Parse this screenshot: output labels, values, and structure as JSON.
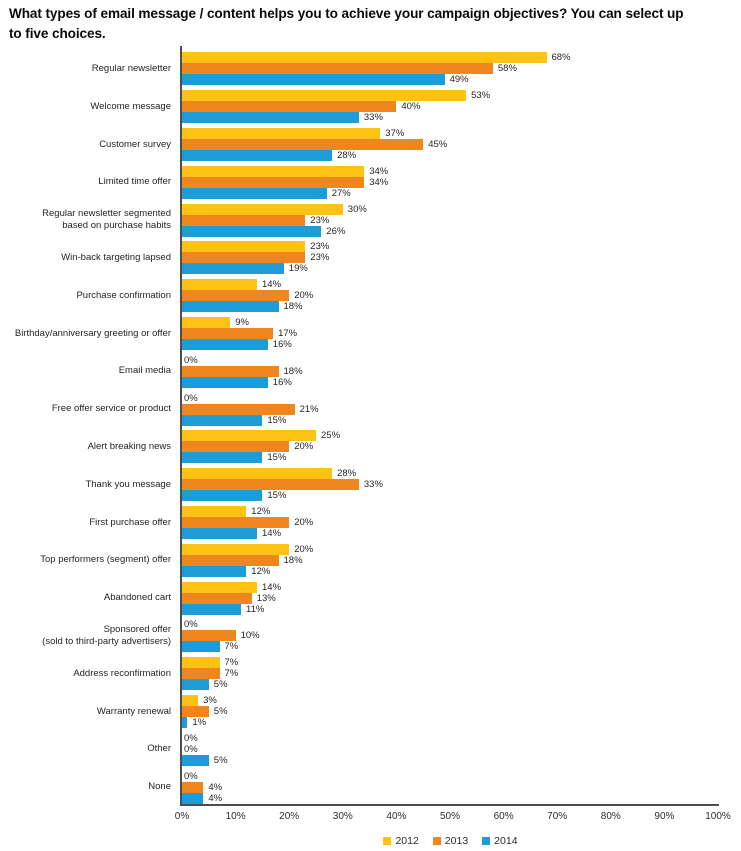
{
  "title": "What types of email message / content helps you to achieve your campaign objectives? You can select up\nto five choices.",
  "chart_data": {
    "type": "bar",
    "orientation": "horizontal",
    "title": "What types of email message / content helps you to achieve your campaign objectives? You can select up to five choices.",
    "categories": [
      "Regular newsletter",
      "Welcome message",
      "Customer survey",
      "Limited time offer",
      "Regular newsletter segmented\nbased on purchase habits",
      "Win-back targeting lapsed",
      "Purchase confirmation",
      "Birthday/anniversary greeting or offer",
      "Email media",
      "Free offer service or product",
      "Alert breaking news",
      "Thank you message",
      "First purchase offer",
      "Top performers (segment) offer",
      "Abandoned cart",
      "Sponsored offer\n(sold to third-party advertisers)",
      "Address reconfirmation",
      "Warranty renewal",
      "Other",
      "None"
    ],
    "series": [
      {
        "name": "2012",
        "color": "#FDC214",
        "values": [
          68,
          53,
          37,
          34,
          30,
          23,
          14,
          9,
          0,
          0,
          25,
          28,
          12,
          20,
          14,
          0,
          7,
          3,
          0,
          0
        ]
      },
      {
        "name": "2013",
        "color": "#F0861E",
        "values": [
          58,
          40,
          45,
          34,
          23,
          23,
          20,
          17,
          18,
          21,
          20,
          33,
          20,
          18,
          13,
          10,
          7,
          5,
          0,
          4
        ]
      },
      {
        "name": "2014",
        "color": "#1E9CD7",
        "values": [
          49,
          33,
          28,
          27,
          26,
          19,
          18,
          16,
          16,
          15,
          15,
          15,
          14,
          12,
          11,
          7,
          5,
          1,
          5,
          4
        ]
      }
    ],
    "value_suffix": "%",
    "x_ticks": [
      "0%",
      "10%",
      "20%",
      "30%",
      "40%",
      "50%",
      "60%",
      "70%",
      "80%",
      "90%",
      "100%"
    ],
    "xlim": [
      0,
      100
    ],
    "grid": false,
    "legend_position": "bottom",
    "legend_entries": [
      "2012",
      "2013",
      "2014"
    ],
    "axis_color": "#4D4D4F",
    "text_color": "#231F20",
    "background_color": "#FFFFFF"
  }
}
